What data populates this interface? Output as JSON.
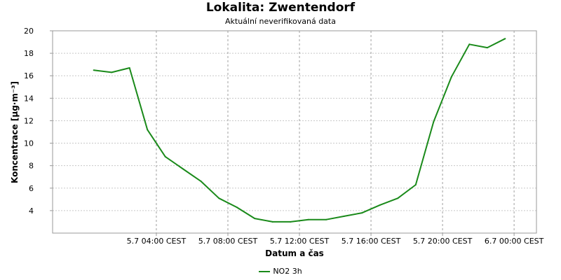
{
  "chart_data": {
    "type": "line",
    "title": "Lokalita: Zwentendorf",
    "subtitle": "Aktuální neverifikovaná data",
    "xlabel": "Datum a čas",
    "ylabel": "Koncentrace [µg·m⁻³]",
    "ylim": [
      2,
      20
    ],
    "yticks": [
      4,
      6,
      8,
      10,
      12,
      14,
      16,
      18,
      20
    ],
    "xlim_hours": [
      -1.8,
      1.25
    ],
    "xticks": [
      {
        "h": 4,
        "label": "5.7 04:00 CEST"
      },
      {
        "h": 8,
        "label": "5.7 08:00 CEST"
      },
      {
        "h": 12,
        "label": "5.7 12:00 CEST"
      },
      {
        "h": 16,
        "label": "5.7 16:00 CEST"
      },
      {
        "h": 20,
        "label": "5.7 20:00 CEST"
      },
      {
        "h": 24,
        "label": "6.7 00:00 CEST"
      }
    ],
    "grid": true,
    "legend_position": "bottom",
    "series": [
      {
        "name": "NO2 3h",
        "color": "#1a8a1a",
        "x_hours": [
          0.5,
          1.5,
          2.5,
          3.5,
          4.5,
          5.5,
          6.5,
          7.5,
          8.5,
          9.5,
          10.5,
          11.5,
          12.5,
          13.5,
          14.5,
          15.5,
          16.5,
          17.5,
          18.5,
          19.5,
          20.5,
          21.5,
          22.5,
          23.5
        ],
        "values": [
          16.5,
          16.3,
          16.7,
          11.2,
          8.8,
          7.7,
          6.6,
          5.1,
          4.3,
          3.3,
          3.0,
          3.0,
          3.2,
          3.2,
          3.5,
          3.8,
          4.5,
          5.1,
          6.3,
          11.9,
          15.9,
          18.8,
          18.5,
          19.3
        ]
      }
    ]
  }
}
